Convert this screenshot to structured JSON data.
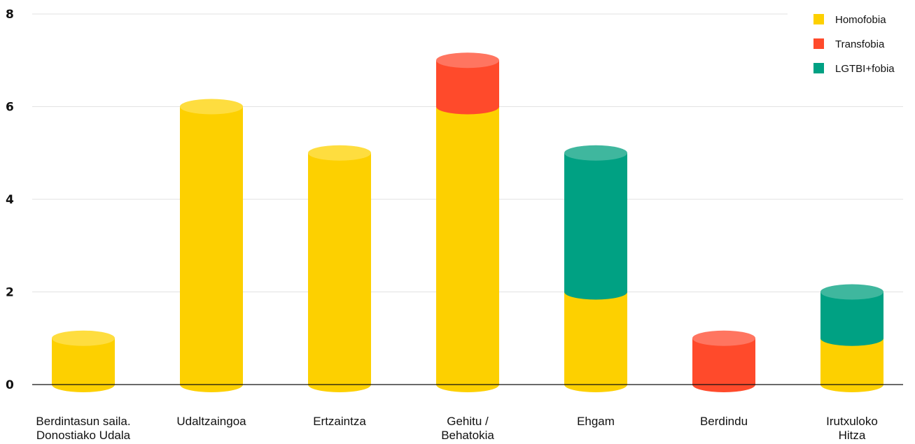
{
  "chart_data": {
    "type": "bar",
    "stacked": true,
    "style": "3d-cylinder",
    "title": "",
    "xlabel": "",
    "ylabel": "",
    "ylim": [
      0,
      8
    ],
    "y_ticks": [
      0,
      2,
      4,
      6,
      8
    ],
    "grid": true,
    "legend_position": "top-right",
    "categories": [
      [
        "Berdintasun saila.",
        "Donostiako Udala"
      ],
      [
        "Udaltzaingoa"
      ],
      [
        "Ertzaintza"
      ],
      [
        "Gehitu /",
        "Behatokia"
      ],
      [
        "Ehgam"
      ],
      [
        "Berdindu"
      ],
      [
        "Irutxuloko",
        "Hitza"
      ]
    ],
    "series": [
      {
        "name": "Homofobia",
        "color": "#FDD000",
        "top_color": "#FEDD3F",
        "values": [
          1,
          6,
          5,
          6,
          2,
          0,
          1
        ]
      },
      {
        "name": "Transfobia",
        "color": "#FF4A2B",
        "top_color": "#FF7560",
        "values": [
          0,
          0,
          0,
          1,
          0,
          1,
          0
        ]
      },
      {
        "name": "LGTBI+fobia",
        "color": "#00A183",
        "top_color": "#3FB79E",
        "values": [
          0,
          0,
          0,
          0,
          3,
          0,
          1
        ]
      }
    ]
  }
}
